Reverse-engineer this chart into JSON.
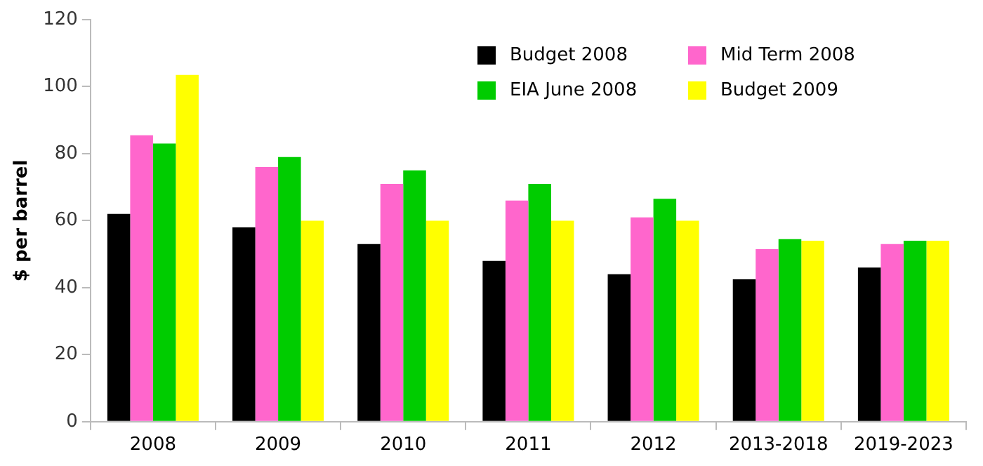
{
  "chart_data": {
    "type": "bar",
    "ylabel": "$ per barrel",
    "categories": [
      "2008",
      "2009",
      "2010",
      "2011",
      "2012",
      "2013-2018",
      "2019-2023"
    ],
    "series": [
      {
        "name": "Budget 2008",
        "color": "#000000",
        "values": [
          62,
          58,
          53,
          48,
          44,
          42.5,
          46
        ]
      },
      {
        "name": "Mid Term 2008",
        "color": "#ff66cc",
        "values": [
          85.5,
          76,
          71,
          66,
          61,
          51.5,
          53
        ]
      },
      {
        "name": "EIA June 2008",
        "color": "#00cc00",
        "values": [
          83,
          79,
          75,
          71,
          66.5,
          54.5,
          54
        ]
      },
      {
        "name": "Budget 2009",
        "color": "#ffff00",
        "values": [
          103.5,
          60,
          60,
          60,
          60,
          54,
          54
        ]
      }
    ],
    "ylim": [
      0,
      120
    ],
    "yticks": [
      0,
      20,
      40,
      60,
      80,
      100,
      120
    ],
    "grid": false,
    "legend": "top right"
  }
}
